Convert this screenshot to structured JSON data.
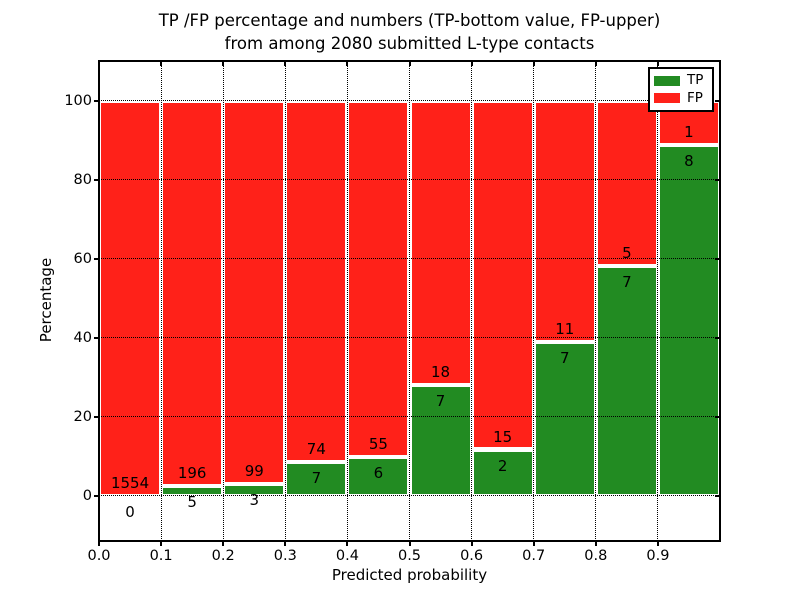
{
  "chart_data": {
    "type": "bar",
    "stacked": true,
    "title": "TP /FP percentage and numbers (TP-bottom value, FP-upper)\nfrom among 2080 submitted L-type contacts",
    "xlabel": "Predicted probability",
    "ylabel": "Percentage",
    "xlim": [
      0.0,
      1.0
    ],
    "ylim": [
      -11.4,
      110.1
    ],
    "grid": "dotted",
    "background": "#ffffff",
    "bin_width": 0.1,
    "x": [
      0.0,
      0.1,
      0.2,
      0.3,
      0.4,
      0.5,
      0.6,
      0.7,
      0.8,
      0.9
    ],
    "series": [
      {
        "name": "TP",
        "color": "#228b22",
        "values": [
          0,
          5,
          3,
          7,
          6,
          7,
          2,
          7,
          7,
          8
        ]
      },
      {
        "name": "FP",
        "color": "#ff2119",
        "values": [
          1554,
          196,
          99,
          74,
          55,
          18,
          15,
          11,
          5,
          1
        ]
      }
    ],
    "tp_percent": [
      0.0,
      2.49,
      2.94,
      8.64,
      9.84,
      28.0,
      11.76,
      38.89,
      58.33,
      88.89
    ],
    "yticks": [
      0,
      20,
      40,
      60,
      80,
      100
    ],
    "ytick_labels": [
      "0",
      "20",
      "40",
      "60",
      "80",
      "100"
    ],
    "xticks": [
      0.0,
      0.1,
      0.2,
      0.3,
      0.4,
      0.5,
      0.6,
      0.7,
      0.8,
      0.9
    ],
    "xtick_labels": [
      "0.0",
      "0.1",
      "0.2",
      "0.3",
      "0.4",
      "0.5",
      "0.6",
      "0.7",
      "0.8",
      "0.9"
    ],
    "legend": {
      "position": "upper right",
      "entries": [
        {
          "label": "TP",
          "color": "#228b22"
        },
        {
          "label": "FP",
          "color": "#ff2119"
        }
      ]
    }
  }
}
